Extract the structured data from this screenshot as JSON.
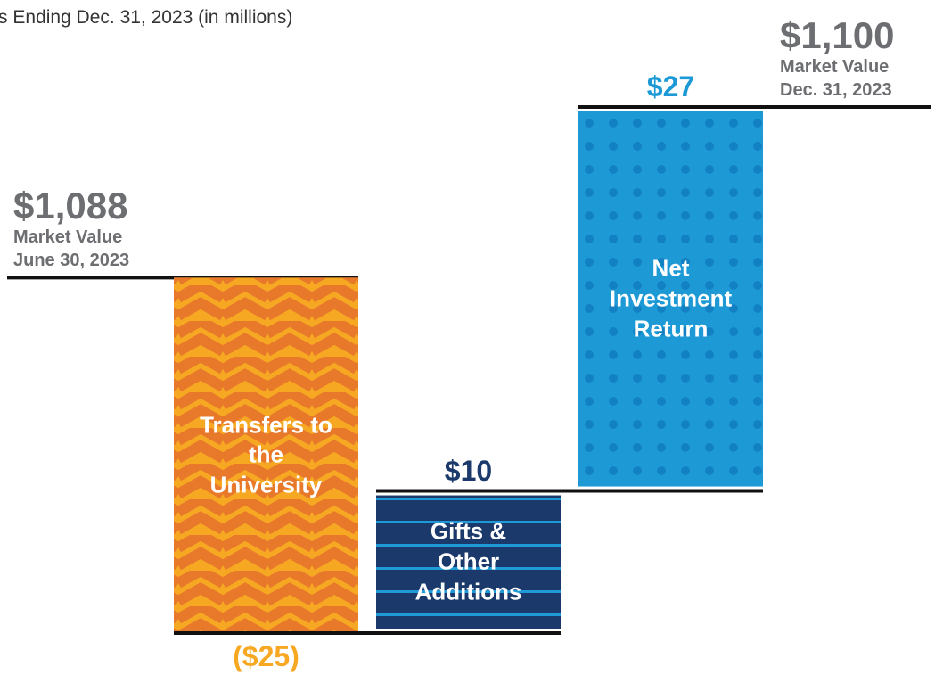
{
  "chart_data": {
    "type": "waterfall",
    "subtitle": "s Ending Dec. 31, 2023 (in millions)",
    "categories": [
      "Market Value June 30, 2023",
      "Transfers to the University",
      "Gifts & Other Additions",
      "Net Investment Return",
      "Market Value Dec. 31, 2023"
    ],
    "measures": [
      "absolute",
      "relative",
      "relative",
      "relative",
      "total"
    ],
    "values": [
      1088,
      -25,
      10,
      27,
      1100
    ],
    "value_labels": [
      "$1,088",
      "($25)",
      "$10",
      "$27",
      "$1,100"
    ],
    "colors": [
      "#6d6e71",
      "#f7a823",
      "#1b3a6b",
      "#1d9ad6",
      "#6d6e71"
    ]
  }
}
